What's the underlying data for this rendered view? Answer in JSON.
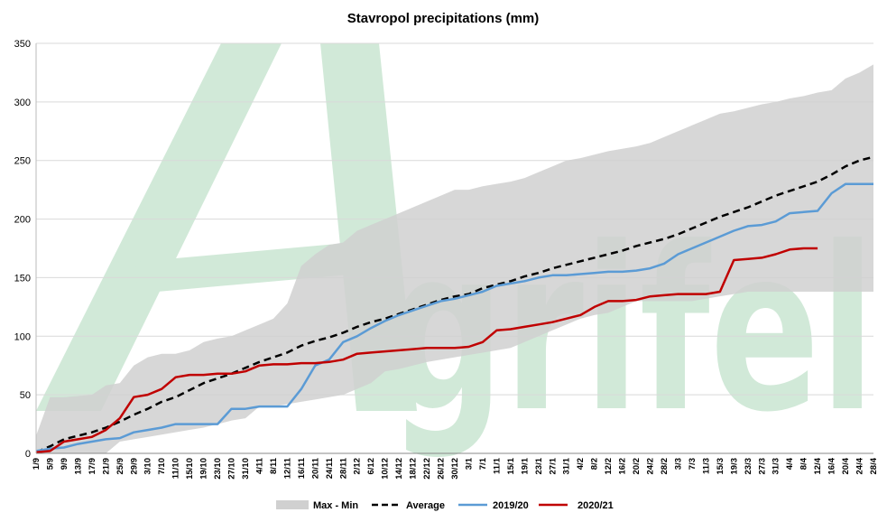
{
  "chart_data": {
    "type": "line",
    "title": "Stavropol precipitations (mm)",
    "xlabel": "",
    "ylabel": "",
    "ylim": [
      0,
      350
    ],
    "yticks": [
      0,
      50,
      100,
      150,
      200,
      250,
      300,
      350
    ],
    "grid": "horizontal",
    "legend_position": "bottom",
    "categories": [
      "1/9",
      "5/9",
      "9/9",
      "13/9",
      "17/9",
      "21/9",
      "25/9",
      "29/9",
      "3/10",
      "7/10",
      "11/10",
      "15/10",
      "19/10",
      "23/10",
      "27/10",
      "31/10",
      "4/11",
      "8/11",
      "12/11",
      "16/11",
      "20/11",
      "24/11",
      "28/11",
      "2/12",
      "6/12",
      "10/12",
      "14/12",
      "18/12",
      "22/12",
      "26/12",
      "30/12",
      "3/1",
      "7/1",
      "11/1",
      "15/1",
      "19/1",
      "23/1",
      "27/1",
      "31/1",
      "4/2",
      "8/2",
      "12/2",
      "16/2",
      "20/2",
      "24/2",
      "28/2",
      "3/3",
      "7/3",
      "11/3",
      "15/3",
      "19/3",
      "23/3",
      "27/3",
      "31/3",
      "4/4",
      "8/4",
      "12/4",
      "16/4",
      "20/4",
      "24/4",
      "28/4"
    ],
    "band": {
      "name": "Max - Min",
      "color": "#d0d0d0",
      "max": [
        15,
        48,
        48,
        49,
        50,
        58,
        60,
        75,
        82,
        85,
        85,
        88,
        95,
        98,
        100,
        105,
        110,
        115,
        128,
        160,
        170,
        178,
        180,
        190,
        195,
        200,
        205,
        210,
        215,
        220,
        225,
        225,
        228,
        230,
        232,
        235,
        240,
        245,
        250,
        252,
        255,
        258,
        260,
        262,
        265,
        270,
        275,
        280,
        285,
        290,
        292,
        295,
        298,
        300,
        303,
        305,
        308,
        310,
        320,
        325,
        332
      ],
      "min": [
        0,
        0,
        0,
        0,
        0,
        0,
        10,
        12,
        14,
        16,
        18,
        20,
        22,
        25,
        28,
        30,
        40,
        40,
        42,
        44,
        46,
        48,
        50,
        55,
        60,
        70,
        72,
        75,
        78,
        80,
        82,
        84,
        86,
        88,
        90,
        95,
        100,
        105,
        110,
        115,
        118,
        120,
        125,
        130,
        130,
        130,
        130,
        130,
        132,
        134,
        136,
        138,
        138,
        138,
        138,
        138,
        138,
        138,
        138,
        138,
        138
      ]
    },
    "series": [
      {
        "name": "Average",
        "color": "#000000",
        "dash": "dashed",
        "values": [
          1,
          6,
          12,
          15,
          18,
          22,
          27,
          33,
          38,
          44,
          48,
          54,
          60,
          64,
          68,
          73,
          78,
          82,
          86,
          92,
          96,
          99,
          103,
          108,
          112,
          115,
          119,
          123,
          127,
          131,
          134,
          136,
          141,
          144,
          147,
          151,
          154,
          158,
          161,
          164,
          167,
          170,
          173,
          177,
          180,
          183,
          187,
          192,
          197,
          202,
          206,
          210,
          215,
          220,
          224,
          228,
          232,
          238,
          245,
          250,
          253
        ]
      },
      {
        "name": "2019/20",
        "color": "#5b9bd5",
        "dash": "solid",
        "values": [
          2,
          4,
          5,
          8,
          10,
          12,
          13,
          18,
          20,
          22,
          25,
          25,
          25,
          25,
          38,
          38,
          40,
          40,
          40,
          55,
          75,
          80,
          95,
          100,
          107,
          113,
          118,
          122,
          126,
          130,
          132,
          135,
          138,
          143,
          145,
          147,
          150,
          152,
          152,
          153,
          154,
          155,
          155,
          156,
          158,
          162,
          170,
          175,
          180,
          185,
          190,
          194,
          195,
          198,
          205,
          206,
          207,
          222,
          230,
          230,
          230
        ]
      },
      {
        "name": "2020/21",
        "color": "#c00000",
        "dash": "solid",
        "values": [
          1,
          2,
          10,
          12,
          14,
          20,
          30,
          48,
          50,
          55,
          65,
          67,
          67,
          68,
          68,
          70,
          75,
          76,
          76,
          77,
          77,
          78,
          80,
          85,
          86,
          87,
          88,
          89,
          90,
          90,
          90,
          91,
          95,
          105,
          106,
          108,
          110,
          112,
          115,
          118,
          125,
          130,
          130,
          131,
          134,
          135,
          136,
          136,
          136,
          138,
          165,
          166,
          167,
          170,
          174,
          175,
          175,
          null,
          null,
          null,
          null
        ]
      }
    ]
  },
  "watermark": {
    "logo_letter": "A",
    "logo_text": "grifel",
    "color": "#cfe8d6"
  }
}
